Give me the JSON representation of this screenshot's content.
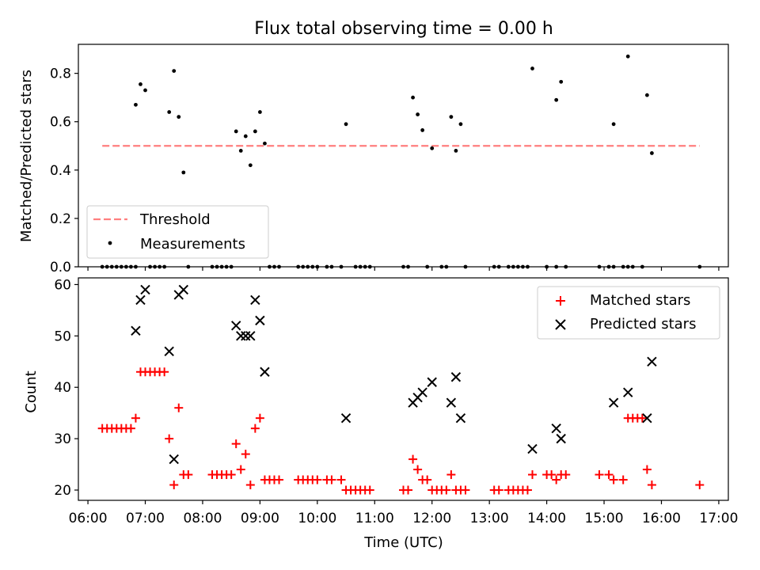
{
  "chart_data": [
    {
      "type": "scatter",
      "title": "Flux total observing time = 0.00 h",
      "ylabel": "Matched/Predicted stars",
      "xlabel": "",
      "xlim": [
        "05:50",
        "17:10"
      ],
      "ylim": [
        0,
        0.92
      ],
      "yticks": [
        "0.0",
        "0.2",
        "0.4",
        "0.6",
        "0.8"
      ],
      "grid": false,
      "legend": "lower-left",
      "series": [
        {
          "name": "Threshold",
          "style": "dashed-line",
          "color": "#ff7f7f",
          "points": [
            {
              "x": "06:15",
              "y": 0.5
            },
            {
              "x": "16:40",
              "y": 0.5
            }
          ]
        },
        {
          "name": "Measurements",
          "style": "dot",
          "color": "#000000",
          "points": [
            {
              "x": "06:15",
              "y": 0
            },
            {
              "x": "06:20",
              "y": 0
            },
            {
              "x": "06:25",
              "y": 0
            },
            {
              "x": "06:30",
              "y": 0
            },
            {
              "x": "06:35",
              "y": 0
            },
            {
              "x": "06:40",
              "y": 0
            },
            {
              "x": "06:45",
              "y": 0
            },
            {
              "x": "06:50",
              "y": 0
            },
            {
              "x": "06:50",
              "y": 0.67
            },
            {
              "x": "06:55",
              "y": 0.755
            },
            {
              "x": "07:00",
              "y": 0.73
            },
            {
              "x": "07:05",
              "y": 0
            },
            {
              "x": "07:10",
              "y": 0
            },
            {
              "x": "07:15",
              "y": 0
            },
            {
              "x": "07:20",
              "y": 0
            },
            {
              "x": "07:25",
              "y": 0.64
            },
            {
              "x": "07:30",
              "y": 0.81
            },
            {
              "x": "07:35",
              "y": 0.62
            },
            {
              "x": "07:40",
              "y": 0.39
            },
            {
              "x": "07:45",
              "y": 0
            },
            {
              "x": "08:10",
              "y": 0
            },
            {
              "x": "08:15",
              "y": 0
            },
            {
              "x": "08:20",
              "y": 0
            },
            {
              "x": "08:25",
              "y": 0
            },
            {
              "x": "08:30",
              "y": 0
            },
            {
              "x": "08:35",
              "y": 0.56
            },
            {
              "x": "08:40",
              "y": 0.48
            },
            {
              "x": "08:45",
              "y": 0.54
            },
            {
              "x": "08:50",
              "y": 0.42
            },
            {
              "x": "08:55",
              "y": 0.56
            },
            {
              "x": "09:00",
              "y": 0.64
            },
            {
              "x": "09:05",
              "y": 0.51
            },
            {
              "x": "09:10",
              "y": 0
            },
            {
              "x": "09:15",
              "y": 0
            },
            {
              "x": "09:20",
              "y": 0
            },
            {
              "x": "09:40",
              "y": 0
            },
            {
              "x": "09:45",
              "y": 0
            },
            {
              "x": "09:50",
              "y": 0
            },
            {
              "x": "09:55",
              "y": 0
            },
            {
              "x": "10:00",
              "y": 0
            },
            {
              "x": "10:10",
              "y": 0
            },
            {
              "x": "10:15",
              "y": 0
            },
            {
              "x": "10:25",
              "y": 0
            },
            {
              "x": "10:30",
              "y": 0.59
            },
            {
              "x": "10:40",
              "y": 0
            },
            {
              "x": "10:45",
              "y": 0
            },
            {
              "x": "10:50",
              "y": 0
            },
            {
              "x": "10:55",
              "y": 0
            },
            {
              "x": "11:30",
              "y": 0
            },
            {
              "x": "11:35",
              "y": 0
            },
            {
              "x": "11:40",
              "y": 0.7
            },
            {
              "x": "11:45",
              "y": 0.63
            },
            {
              "x": "11:50",
              "y": 0.565
            },
            {
              "x": "11:55",
              "y": 0
            },
            {
              "x": "12:00",
              "y": 0.49
            },
            {
              "x": "12:10",
              "y": 0
            },
            {
              "x": "12:15",
              "y": 0
            },
            {
              "x": "12:20",
              "y": 0.62
            },
            {
              "x": "12:25",
              "y": 0.48
            },
            {
              "x": "12:30",
              "y": 0.59
            },
            {
              "x": "12:35",
              "y": 0
            },
            {
              "x": "13:05",
              "y": 0
            },
            {
              "x": "13:10",
              "y": 0
            },
            {
              "x": "13:20",
              "y": 0
            },
            {
              "x": "13:25",
              "y": 0
            },
            {
              "x": "13:30",
              "y": 0
            },
            {
              "x": "13:35",
              "y": 0
            },
            {
              "x": "13:40",
              "y": 0
            },
            {
              "x": "13:45",
              "y": 0.82
            },
            {
              "x": "14:00",
              "y": 0
            },
            {
              "x": "14:10",
              "y": 0
            },
            {
              "x": "14:10",
              "y": 0.69
            },
            {
              "x": "14:15",
              "y": 0.765
            },
            {
              "x": "14:20",
              "y": 0
            },
            {
              "x": "14:55",
              "y": 0
            },
            {
              "x": "15:05",
              "y": 0
            },
            {
              "x": "15:10",
              "y": 0
            },
            {
              "x": "15:10",
              "y": 0.59
            },
            {
              "x": "15:20",
              "y": 0
            },
            {
              "x": "15:25",
              "y": 0
            },
            {
              "x": "15:25",
              "y": 0.87
            },
            {
              "x": "15:30",
              "y": 0
            },
            {
              "x": "15:40",
              "y": 0
            },
            {
              "x": "15:45",
              "y": 0.71
            },
            {
              "x": "15:50",
              "y": 0.47
            },
            {
              "x": "16:40",
              "y": 0
            }
          ]
        }
      ]
    },
    {
      "type": "scatter",
      "title": "",
      "ylabel": "Count",
      "xlabel": "Time (UTC)",
      "xlim": [
        "05:50",
        "17:10"
      ],
      "ylim": [
        18,
        61.3
      ],
      "yticks": [
        "20",
        "30",
        "40",
        "50",
        "60"
      ],
      "xticks": [
        "06:00",
        "07:00",
        "08:00",
        "09:00",
        "10:00",
        "11:00",
        "12:00",
        "13:00",
        "14:00",
        "15:00",
        "16:00",
        "17:00"
      ],
      "grid": false,
      "legend": "top-right",
      "series": [
        {
          "name": "Matched stars",
          "marker": "plus",
          "color": "#ff0000",
          "points": [
            {
              "x": "06:15",
              "y": 32
            },
            {
              "x": "06:20",
              "y": 32
            },
            {
              "x": "06:25",
              "y": 32
            },
            {
              "x": "06:30",
              "y": 32
            },
            {
              "x": "06:35",
              "y": 32
            },
            {
              "x": "06:40",
              "y": 32
            },
            {
              "x": "06:45",
              "y": 32
            },
            {
              "x": "06:50",
              "y": 34
            },
            {
              "x": "06:55",
              "y": 43
            },
            {
              "x": "07:00",
              "y": 43
            },
            {
              "x": "07:05",
              "y": 43
            },
            {
              "x": "07:10",
              "y": 43
            },
            {
              "x": "07:15",
              "y": 43
            },
            {
              "x": "07:20",
              "y": 43
            },
            {
              "x": "07:25",
              "y": 30
            },
            {
              "x": "07:30",
              "y": 21
            },
            {
              "x": "07:35",
              "y": 36
            },
            {
              "x": "07:40",
              "y": 23
            },
            {
              "x": "07:45",
              "y": 23
            },
            {
              "x": "08:10",
              "y": 23
            },
            {
              "x": "08:15",
              "y": 23
            },
            {
              "x": "08:20",
              "y": 23
            },
            {
              "x": "08:25",
              "y": 23
            },
            {
              "x": "08:30",
              "y": 23
            },
            {
              "x": "08:35",
              "y": 29
            },
            {
              "x": "08:40",
              "y": 24
            },
            {
              "x": "08:45",
              "y": 27
            },
            {
              "x": "08:50",
              "y": 21
            },
            {
              "x": "08:55",
              "y": 32
            },
            {
              "x": "09:00",
              "y": 34
            },
            {
              "x": "09:05",
              "y": 22
            },
            {
              "x": "09:10",
              "y": 22
            },
            {
              "x": "09:15",
              "y": 22
            },
            {
              "x": "09:20",
              "y": 22
            },
            {
              "x": "09:40",
              "y": 22
            },
            {
              "x": "09:45",
              "y": 22
            },
            {
              "x": "09:50",
              "y": 22
            },
            {
              "x": "09:55",
              "y": 22
            },
            {
              "x": "10:00",
              "y": 22
            },
            {
              "x": "10:10",
              "y": 22
            },
            {
              "x": "10:15",
              "y": 22
            },
            {
              "x": "10:25",
              "y": 22
            },
            {
              "x": "10:30",
              "y": 20
            },
            {
              "x": "10:35",
              "y": 20
            },
            {
              "x": "10:40",
              "y": 20
            },
            {
              "x": "10:45",
              "y": 20
            },
            {
              "x": "10:50",
              "y": 20
            },
            {
              "x": "10:55",
              "y": 20
            },
            {
              "x": "11:30",
              "y": 20
            },
            {
              "x": "11:35",
              "y": 20
            },
            {
              "x": "11:40",
              "y": 26
            },
            {
              "x": "11:45",
              "y": 24
            },
            {
              "x": "11:50",
              "y": 22
            },
            {
              "x": "11:55",
              "y": 22
            },
            {
              "x": "12:00",
              "y": 20
            },
            {
              "x": "12:05",
              "y": 20
            },
            {
              "x": "12:10",
              "y": 20
            },
            {
              "x": "12:15",
              "y": 20
            },
            {
              "x": "12:20",
              "y": 23
            },
            {
              "x": "12:25",
              "y": 20
            },
            {
              "x": "12:30",
              "y": 20
            },
            {
              "x": "12:35",
              "y": 20
            },
            {
              "x": "13:05",
              "y": 20
            },
            {
              "x": "13:10",
              "y": 20
            },
            {
              "x": "13:20",
              "y": 20
            },
            {
              "x": "13:25",
              "y": 20
            },
            {
              "x": "13:30",
              "y": 20
            },
            {
              "x": "13:35",
              "y": 20
            },
            {
              "x": "13:40",
              "y": 20
            },
            {
              "x": "13:45",
              "y": 23
            },
            {
              "x": "14:00",
              "y": 23
            },
            {
              "x": "14:05",
              "y": 23
            },
            {
              "x": "14:10",
              "y": 22
            },
            {
              "x": "14:15",
              "y": 23
            },
            {
              "x": "14:20",
              "y": 23
            },
            {
              "x": "14:55",
              "y": 23
            },
            {
              "x": "15:05",
              "y": 23
            },
            {
              "x": "15:10",
              "y": 22
            },
            {
              "x": "15:20",
              "y": 22
            },
            {
              "x": "15:25",
              "y": 34
            },
            {
              "x": "15:30",
              "y": 34
            },
            {
              "x": "15:35",
              "y": 34
            },
            {
              "x": "15:40",
              "y": 34
            },
            {
              "x": "15:45",
              "y": 24
            },
            {
              "x": "15:50",
              "y": 21
            },
            {
              "x": "16:40",
              "y": 21
            }
          ]
        },
        {
          "name": "Predicted stars",
          "marker": "x",
          "color": "#000000",
          "points": [
            {
              "x": "06:50",
              "y": 51
            },
            {
              "x": "06:55",
              "y": 57
            },
            {
              "x": "07:00",
              "y": 59
            },
            {
              "x": "07:25",
              "y": 47
            },
            {
              "x": "07:30",
              "y": 26
            },
            {
              "x": "07:35",
              "y": 58
            },
            {
              "x": "07:40",
              "y": 59
            },
            {
              "x": "08:35",
              "y": 52
            },
            {
              "x": "08:40",
              "y": 50
            },
            {
              "x": "08:45",
              "y": 50
            },
            {
              "x": "08:50",
              "y": 50
            },
            {
              "x": "08:55",
              "y": 57
            },
            {
              "x": "09:00",
              "y": 53
            },
            {
              "x": "09:05",
              "y": 43
            },
            {
              "x": "10:30",
              "y": 34
            },
            {
              "x": "11:40",
              "y": 37
            },
            {
              "x": "11:45",
              "y": 38
            },
            {
              "x": "11:50",
              "y": 39
            },
            {
              "x": "12:00",
              "y": 41
            },
            {
              "x": "12:20",
              "y": 37
            },
            {
              "x": "12:25",
              "y": 42
            },
            {
              "x": "12:30",
              "y": 34
            },
            {
              "x": "13:45",
              "y": 28
            },
            {
              "x": "14:10",
              "y": 32
            },
            {
              "x": "14:15",
              "y": 30
            },
            {
              "x": "15:10",
              "y": 37
            },
            {
              "x": "15:25",
              "y": 39
            },
            {
              "x": "15:45",
              "y": 34
            },
            {
              "x": "15:50",
              "y": 45
            }
          ]
        }
      ]
    }
  ]
}
